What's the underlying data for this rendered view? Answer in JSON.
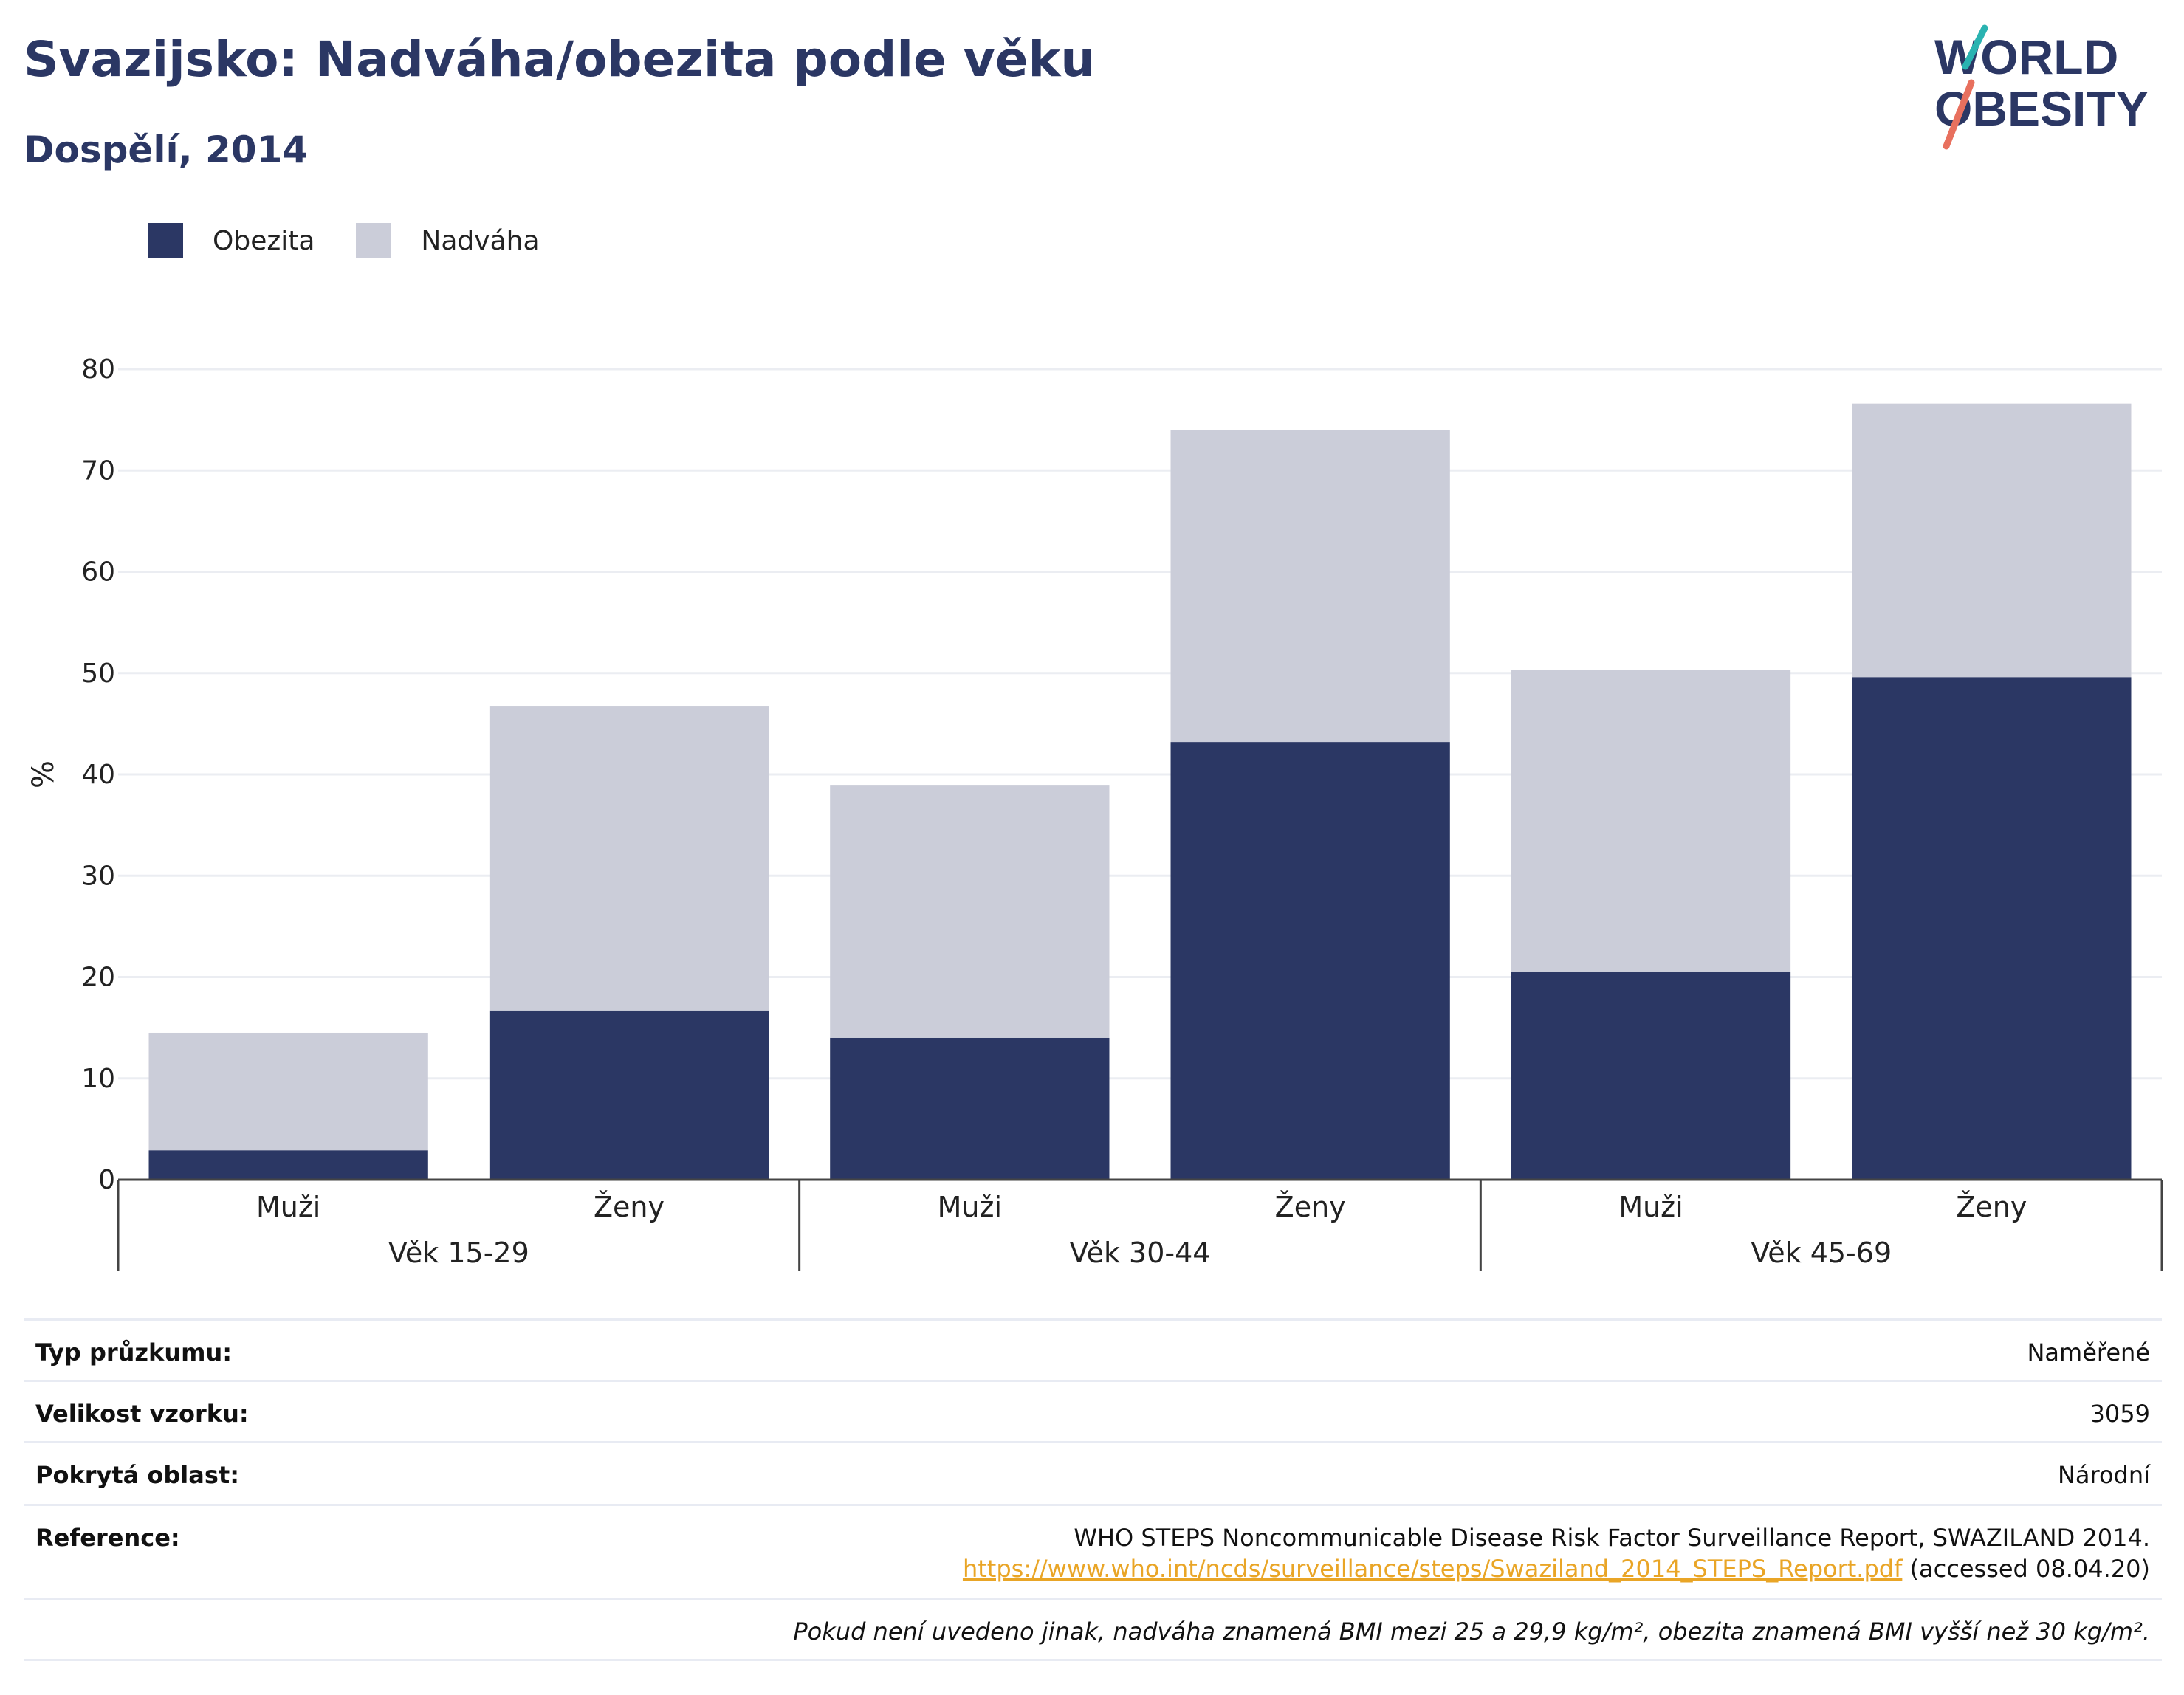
{
  "header": {
    "title": "Svazijsko: Nadváha/obezita podle věku",
    "subtitle": "Dospělí, 2014"
  },
  "logo": {
    "line1": "WORLD",
    "line2": "OBESITY"
  },
  "legend": {
    "items": [
      {
        "label": "Obezita",
        "color": "#2b3764"
      },
      {
        "label": "Nadváha",
        "color": "#cbcdd9"
      }
    ]
  },
  "chart_data": {
    "type": "bar",
    "stacked": true,
    "ylabel": "%",
    "ylim": [
      0,
      80
    ],
    "yticks": [
      0,
      10,
      20,
      30,
      40,
      50,
      60,
      70,
      80
    ],
    "grid": true,
    "legend_position": "top-left",
    "categories": [
      "Muži",
      "Ženy",
      "Muži",
      "Ženy",
      "Muži",
      "Ženy"
    ],
    "groups": [
      {
        "label": "Věk 15-29",
        "categories": [
          "Muži",
          "Ženy"
        ]
      },
      {
        "label": "Věk 30-44",
        "categories": [
          "Muži",
          "Ženy"
        ]
      },
      {
        "label": "Věk 45-69",
        "categories": [
          "Muži",
          "Ženy"
        ]
      }
    ],
    "series": [
      {
        "name": "Obezita",
        "color": "#2b3764",
        "values": [
          2.9,
          16.7,
          14.0,
          43.2,
          20.5,
          49.6
        ]
      },
      {
        "name": "Nadváha",
        "color": "#cbcdd9",
        "values": [
          11.6,
          30.0,
          24.9,
          30.8,
          29.8,
          27.0
        ]
      }
    ]
  },
  "info": {
    "survey_type_label": "Typ průzkumu:",
    "survey_type_value": "Naměřené",
    "sample_size_label": "Velikost vzorku:",
    "sample_size_value": "3059",
    "coverage_label": "Pokrytá oblast:",
    "coverage_value": "Národní",
    "reference_label": "Reference:",
    "reference_text": "WHO STEPS Noncommunicable Disease Risk Factor Surveillance Report, SWAZILAND 2014.",
    "reference_url": "https://www.who.int/ncds/surveillance/steps/Swaziland_2014_STEPS_Report.pdf",
    "reference_accessed": " (accessed 08.04.20)",
    "note": "Pokud není uvedeno jinak, nadváha znamená BMI mezi 25 a 29,9 kg/m², obezita znamená BMI vyšší než 30 kg/m²."
  }
}
